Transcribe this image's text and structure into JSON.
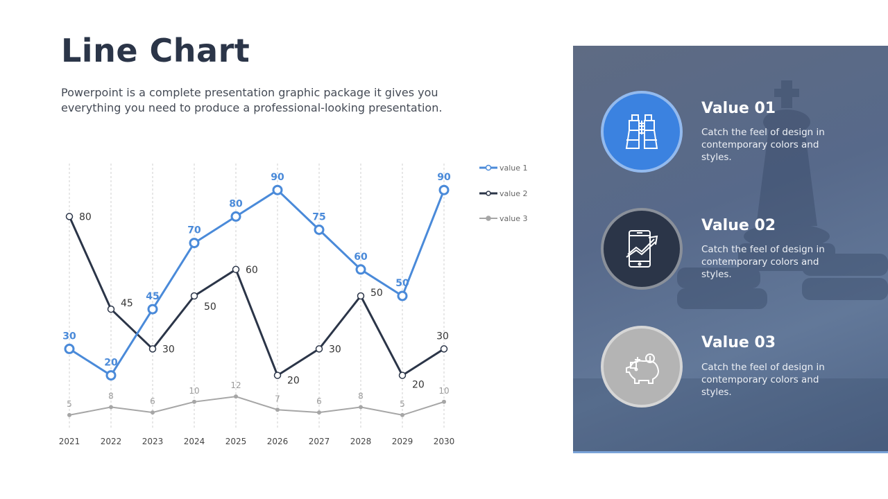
{
  "header": {
    "title": "Line Chart",
    "subtitle_line1": "Powerpoint is a complete presentation graphic package it gives you",
    "subtitle_line2": "everything you need to produce a professional-looking presentation."
  },
  "chart_data": {
    "type": "line",
    "x": [
      "2021",
      "2022",
      "2023",
      "2024",
      "2025",
      "2026",
      "2027",
      "2028",
      "2029",
      "2030"
    ],
    "series": [
      {
        "name": "value 1",
        "color": "#4a8ad9",
        "values": [
          30,
          20,
          45,
          70,
          80,
          90,
          75,
          60,
          50,
          90
        ]
      },
      {
        "name": "value 2",
        "color": "#2b3548",
        "values": [
          80,
          45,
          30,
          50,
          60,
          20,
          30,
          50,
          20,
          30
        ]
      },
      {
        "name": "value 3",
        "color": "#a6a6a6",
        "values": [
          5,
          8,
          6,
          10,
          12,
          7,
          6,
          8,
          5,
          10
        ]
      }
    ],
    "ylim": [
      0,
      100
    ],
    "grid": "vertical-dashed",
    "legend": "right"
  },
  "panel": {
    "items": [
      {
        "title": "Value 01",
        "desc_line1": "Catch the feel of design in",
        "desc_line2": "contemporary colors and",
        "desc_line3": "styles.",
        "icon": "binoculars-icon",
        "color": "#3b82e0"
      },
      {
        "title": "Value 02",
        "desc_line1": "Catch the feel of design in",
        "desc_line2": "contemporary colors and",
        "desc_line3": "styles.",
        "icon": "phone-growth-icon",
        "color": "#2b3548"
      },
      {
        "title": "Value 03",
        "desc_line1": "Catch the feel of design in",
        "desc_line2": "contemporary colors and",
        "desc_line3": "styles.",
        "icon": "piggy-bank-icon",
        "color": "#b4b4b4"
      }
    ]
  }
}
